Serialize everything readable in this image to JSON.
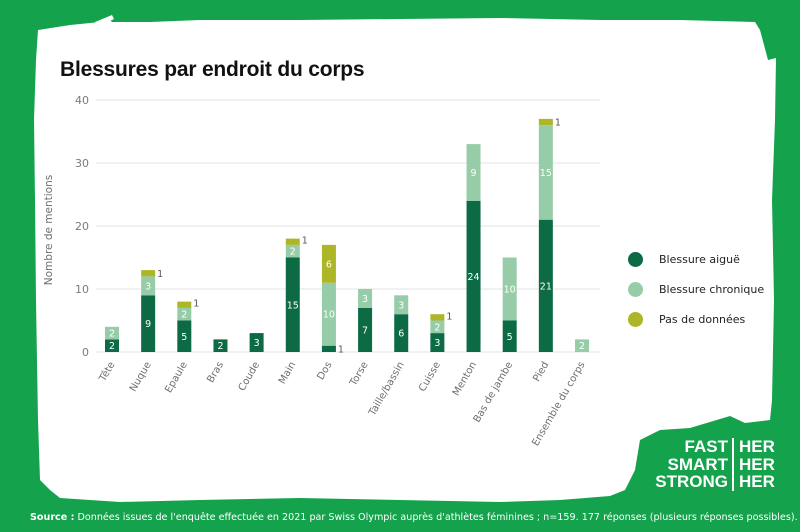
{
  "title": "Blessures par endroit du corps",
  "colors": {
    "background": "#14a34c",
    "acute": "#0c6b45",
    "chronic": "#96cda8",
    "no_data": "#adb626"
  },
  "legend": [
    {
      "label": "Blessure aiguë",
      "color": "#0c6b45"
    },
    {
      "label": "Blessure chronique",
      "color": "#96cda8"
    },
    {
      "label": "Pas de données",
      "color": "#adb626"
    }
  ],
  "logo": {
    "left": [
      "FAST",
      "SMART",
      "STRONG"
    ],
    "right": [
      "HER",
      "HER",
      "HER"
    ]
  },
  "source": {
    "label": "Source :",
    "text": " Données issues de l'enquête effectuée en 2021 par Swiss Olympic auprès d'athlètes féminines ; n=159. 177 réponses (plusieurs réponses possibles)."
  },
  "chart_data": {
    "type": "bar",
    "stacked": true,
    "title": "Blessures par endroit du corps",
    "xlabel": "",
    "ylabel": "Nombre de mentions",
    "ylim": [
      0,
      40
    ],
    "yticks": [
      0,
      10,
      20,
      30,
      40
    ],
    "grid": true,
    "legend_position": "right",
    "categories": [
      "Tête",
      "Nuque",
      "Epaule",
      "Bras",
      "Coude",
      "Main",
      "Dos",
      "Torse",
      "Taille/bassin",
      "Cuisse",
      "Menton",
      "Bas de jambe",
      "Pied",
      "Ensemble du corps"
    ],
    "series": [
      {
        "name": "Blessure aiguë",
        "color": "#0c6b45",
        "values": [
          2,
          9,
          5,
          2,
          3,
          15,
          1,
          7,
          6,
          3,
          24,
          5,
          21,
          0
        ]
      },
      {
        "name": "Blessure chronique",
        "color": "#96cda8",
        "values": [
          2,
          3,
          2,
          0,
          0,
          2,
          10,
          3,
          3,
          2,
          9,
          10,
          15,
          2
        ]
      },
      {
        "name": "Pas de données",
        "color": "#adb626",
        "values": [
          0,
          1,
          1,
          0,
          0,
          1,
          6,
          0,
          0,
          1,
          0,
          0,
          1,
          0
        ]
      }
    ]
  }
}
